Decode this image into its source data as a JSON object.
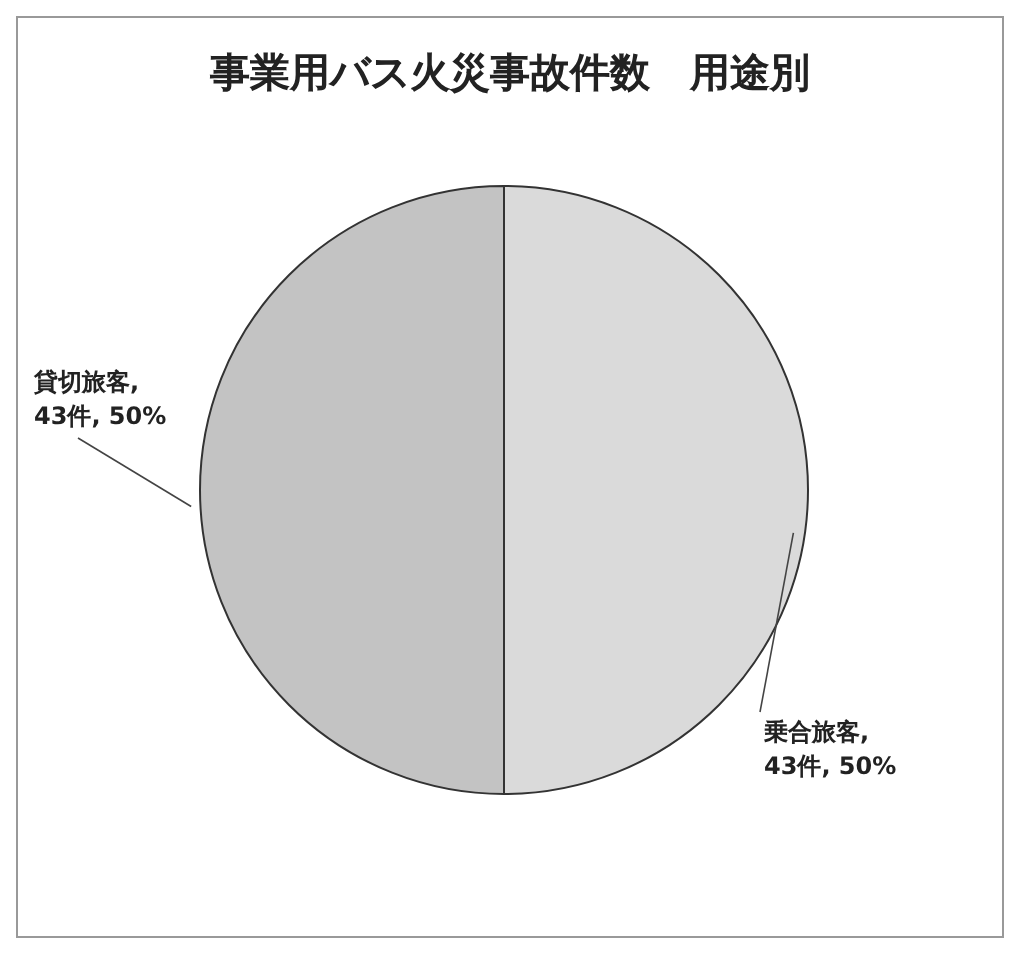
{
  "chart_data": {
    "type": "pie",
    "title": "事業用バス火災事故件数　用途別",
    "categories": [
      "乗合旅客",
      "貸切旅客"
    ],
    "values": [
      43,
      43
    ],
    "colors": [
      "#dadada",
      "#c3c3c3"
    ],
    "value_labels": [
      ",\n43件, 50%",
      ",\n43件, 50%"
    ],
    "legend": false
  }
}
